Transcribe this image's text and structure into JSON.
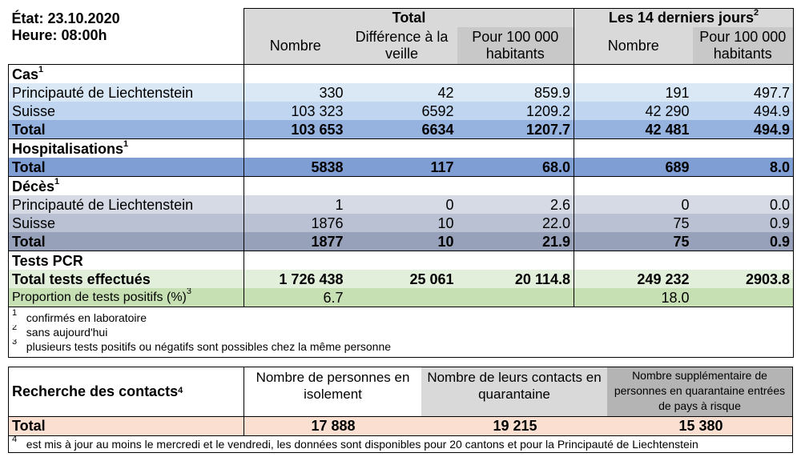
{
  "header": {
    "etat": "État: 23.10.2020",
    "heure": "Heure: 08:00h",
    "total_group": "Total",
    "last14_group": "Les 14 derniers jours",
    "last14_sup": "2",
    "col_nombre": "Nombre",
    "col_diff": "Différence à la veille",
    "col_per100k": "Pour 100 000 habitants",
    "col_nombre14": "Nombre",
    "col_per100k14": "Pour 100 000 habitants"
  },
  "cas": {
    "title": "Cas",
    "sup": "1",
    "rows": [
      {
        "label": "Principauté de Liechtenstein",
        "nombre": "330",
        "diff": "42",
        "per100k": "859.9",
        "nombre14": "191",
        "per100k14": "497.7"
      },
      {
        "label": "Suisse",
        "nombre": "103 323",
        "diff": "6592",
        "per100k": "1209.2",
        "nombre14": "42 290",
        "per100k14": "494.9"
      },
      {
        "label": "Total",
        "nombre": "103 653",
        "diff": "6634",
        "per100k": "1207.7",
        "nombre14": "42 481",
        "per100k14": "494.9"
      }
    ]
  },
  "hosp": {
    "title": "Hospitalisations",
    "sup": "1",
    "total": {
      "label": "Total",
      "nombre": "5838",
      "diff": "117",
      "per100k": "68.0",
      "nombre14": "689",
      "per100k14": "8.0"
    }
  },
  "deces": {
    "title": "Décès",
    "sup": "1",
    "rows": [
      {
        "label": "Principauté de Liechtenstein",
        "nombre": "1",
        "diff": "0",
        "per100k": "2.6",
        "nombre14": "0",
        "per100k14": "0.0"
      },
      {
        "label": "Suisse",
        "nombre": "1876",
        "diff": "10",
        "per100k": "22.0",
        "nombre14": "75",
        "per100k14": "0.9"
      },
      {
        "label": "Total",
        "nombre": "1877",
        "diff": "10",
        "per100k": "21.9",
        "nombre14": "75",
        "per100k14": "0.9"
      }
    ]
  },
  "pcr": {
    "title": "Tests PCR",
    "total": {
      "label": "Total tests effectués",
      "nombre": "1 726 438",
      "diff": "25 061",
      "per100k": "20 114.8",
      "nombre14": "249 232",
      "per100k14": "2903.8"
    },
    "prop": {
      "label": "Proportion de tests positifs (%)",
      "sup": "3",
      "total": "6.7",
      "last14": "18.0"
    }
  },
  "notes": [
    {
      "num": "1",
      "text": "confirmés en laboratoire"
    },
    {
      "num": "2",
      "text": "sans aujourd'hui"
    },
    {
      "num": "3",
      "text": "plusieurs tests positifs ou négatifs sont possibles chez la même personne"
    }
  ],
  "contacts": {
    "title": "Recherche des contacts",
    "sup": "4",
    "col_isolement": "Nombre de personnes en isolement",
    "col_quarantaine": "Nombre de leurs contacts en quarantaine",
    "col_risque": "Nombre supplémentaire de personnes en quarantaine entrées de pays à risque",
    "total_label": "Total",
    "isolement": "17 888",
    "quarantaine": "19 215",
    "risque": "15 380",
    "note_num": "4",
    "note_text": "est mis à jour au moins le mercredi et le vendredi, les données sont disponibles pour 20 cantons et pour la Principauté de Liechtenstein"
  }
}
